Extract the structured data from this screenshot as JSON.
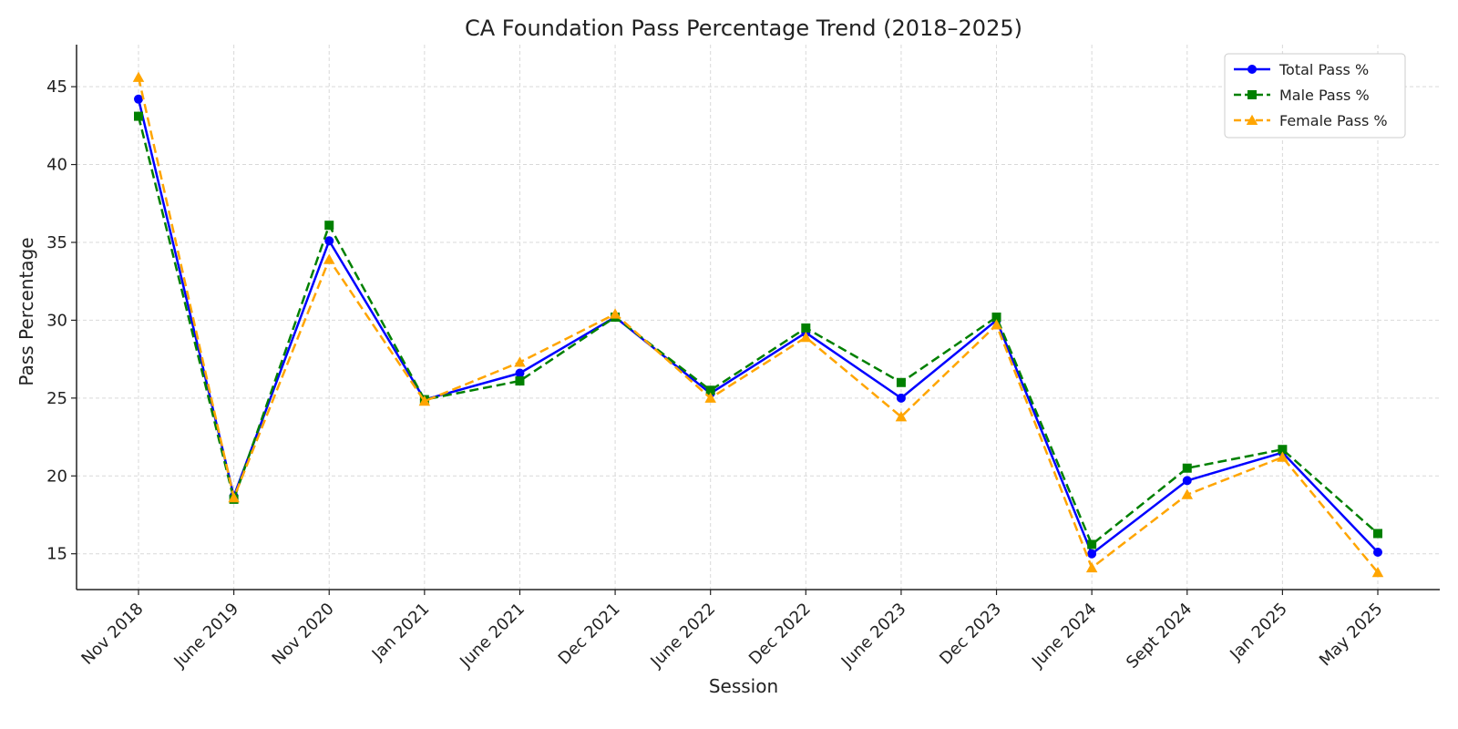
{
  "chart_data": {
    "type": "line",
    "title": "CA Foundation Pass Percentage Trend (2018–2025)",
    "xlabel": "Session",
    "ylabel": "Pass Percentage",
    "categories": [
      "Nov 2018",
      "June 2019",
      "Nov 2020",
      "Jan 2021",
      "June 2021",
      "Dec 2021",
      "June 2022",
      "Dec 2022",
      "June 2023",
      "Dec 2023",
      "June 2024",
      "Sept 2024",
      "Jan 2025",
      "May 2025"
    ],
    "ylim": [
      12.7,
      47.7
    ],
    "yticks": [
      15,
      20,
      25,
      30,
      35,
      40,
      45
    ],
    "grid": true,
    "legend_position": "top-right",
    "series": [
      {
        "name": "Total Pass %",
        "values": [
          44.2,
          18.7,
          35.1,
          24.9,
          26.6,
          30.2,
          25.3,
          29.2,
          25.0,
          30.0,
          15.0,
          19.7,
          21.5,
          15.1
        ],
        "color": "#0000ff",
        "line_style": "solid",
        "marker": "circle"
      },
      {
        "name": "Male Pass %",
        "values": [
          43.1,
          18.5,
          36.1,
          24.9,
          26.1,
          30.2,
          25.5,
          29.5,
          26.0,
          30.2,
          15.6,
          20.5,
          21.7,
          16.3
        ],
        "color": "#008000",
        "line_style": "dashed",
        "marker": "square"
      },
      {
        "name": "Female Pass %",
        "values": [
          45.6,
          18.6,
          33.9,
          24.8,
          27.3,
          30.4,
          25.0,
          28.9,
          23.8,
          29.7,
          14.1,
          18.8,
          21.2,
          13.8
        ],
        "color": "#ffa500",
        "line_style": "dashed",
        "marker": "triangle"
      }
    ]
  }
}
